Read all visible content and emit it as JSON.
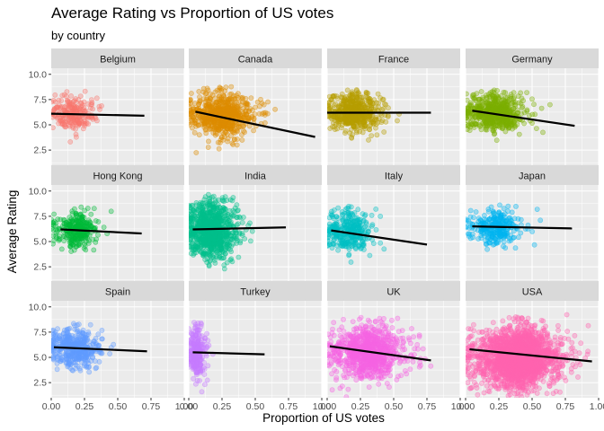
{
  "chart_data": {
    "type": "scatter",
    "title": "Average Rating vs Proportion of US votes",
    "subtitle": "by country",
    "xlabel": "Proportion of US votes",
    "ylabel": "Average Rating",
    "xlim": [
      0,
      1
    ],
    "ylim": [
      1,
      10.6
    ],
    "x_ticks": [
      0,
      0.25,
      0.5,
      0.75,
      1
    ],
    "x_tick_labels": [
      "0.00",
      "0.25",
      "0.50",
      "0.75",
      "1.00"
    ],
    "y_ticks": [
      2.5,
      5,
      7.5,
      10
    ],
    "y_tick_labels": [
      "2.5",
      "5.0",
      "7.5",
      "10.0"
    ],
    "grid": true,
    "legend": "none",
    "facet_ncol": 4,
    "panel_background": "#EBEBEB",
    "strip_background": "#D9D9D9",
    "trend_line_color": "#000000",
    "facets": [
      {
        "name": "Belgium",
        "color": "#F8766D",
        "n_points": 220,
        "x_center": 0.15,
        "x_spread": 0.09,
        "x_max": 0.68,
        "y_center": 6.1,
        "y_spread": 0.8,
        "y_min": 2.5,
        "y_max": 8.5,
        "trend": [
          [
            0.0,
            6.1
          ],
          [
            0.7,
            5.9
          ]
        ]
      },
      {
        "name": "Canada",
        "color": "#DE8C00",
        "n_points": 700,
        "x_center": 0.22,
        "x_spread": 0.13,
        "x_max": 0.98,
        "y_center": 6.0,
        "y_spread": 1.0,
        "y_min": 2.0,
        "y_max": 9.0,
        "trend": [
          [
            0.05,
            6.3
          ],
          [
            0.95,
            3.8
          ]
        ]
      },
      {
        "name": "France",
        "color": "#B79F00",
        "n_points": 550,
        "x_center": 0.18,
        "x_spread": 0.11,
        "x_max": 0.75,
        "y_center": 6.2,
        "y_spread": 0.9,
        "y_min": 2.0,
        "y_max": 8.5,
        "trend": [
          [
            0.0,
            6.2
          ],
          [
            0.78,
            6.2
          ]
        ]
      },
      {
        "name": "Germany",
        "color": "#7CAE00",
        "n_points": 600,
        "x_center": 0.2,
        "x_spread": 0.12,
        "x_max": 0.85,
        "y_center": 6.2,
        "y_spread": 0.9,
        "y_min": 1.8,
        "y_max": 8.5,
        "trend": [
          [
            0.05,
            6.4
          ],
          [
            0.82,
            4.9
          ]
        ]
      },
      {
        "name": "Hong Kong",
        "color": "#00BA38",
        "n_points": 320,
        "x_center": 0.18,
        "x_spread": 0.08,
        "x_max": 0.65,
        "y_center": 6.2,
        "y_spread": 0.8,
        "y_min": 3.5,
        "y_max": 8.5,
        "trend": [
          [
            0.07,
            6.2
          ],
          [
            0.68,
            5.8
          ]
        ]
      },
      {
        "name": "India",
        "color": "#00C08B",
        "n_points": 1000,
        "x_center": 0.15,
        "x_spread": 0.1,
        "x_max": 0.75,
        "y_center": 6.2,
        "y_spread": 1.3,
        "y_min": 1.5,
        "y_max": 9.8,
        "trend": [
          [
            0.03,
            6.2
          ],
          [
            0.73,
            6.4
          ]
        ]
      },
      {
        "name": "Italy",
        "color": "#00BFC4",
        "n_points": 350,
        "x_center": 0.15,
        "x_spread": 0.1,
        "x_max": 0.75,
        "y_center": 6.0,
        "y_spread": 1.0,
        "y_min": 1.5,
        "y_max": 8.5,
        "trend": [
          [
            0.03,
            6.1
          ],
          [
            0.75,
            4.7
          ]
        ]
      },
      {
        "name": "Japan",
        "color": "#00B4F0",
        "n_points": 300,
        "x_center": 0.2,
        "x_spread": 0.1,
        "x_max": 0.8,
        "y_center": 6.4,
        "y_spread": 0.8,
        "y_min": 1.0,
        "y_max": 9.0,
        "trend": [
          [
            0.05,
            6.5
          ],
          [
            0.8,
            6.3
          ]
        ]
      },
      {
        "name": "Spain",
        "color": "#619CFF",
        "n_points": 450,
        "x_center": 0.17,
        "x_spread": 0.1,
        "x_max": 0.7,
        "y_center": 6.0,
        "y_spread": 0.9,
        "y_min": 1.5,
        "y_max": 8.5,
        "trend": [
          [
            0.02,
            6.0
          ],
          [
            0.72,
            5.6
          ]
        ]
      },
      {
        "name": "Turkey",
        "color": "#C77CFF",
        "n_points": 250,
        "x_center": 0.05,
        "x_spread": 0.04,
        "x_max": 0.57,
        "y_center": 5.5,
        "y_spread": 1.3,
        "y_min": 1.5,
        "y_max": 8.5,
        "trend": [
          [
            0.03,
            5.5
          ],
          [
            0.57,
            5.3
          ]
        ]
      },
      {
        "name": "UK",
        "color": "#F564E3",
        "n_points": 900,
        "x_center": 0.28,
        "x_spread": 0.14,
        "x_max": 0.9,
        "y_center": 5.5,
        "y_spread": 1.3,
        "y_min": 1.0,
        "y_max": 9.0,
        "trend": [
          [
            0.02,
            6.1
          ],
          [
            0.78,
            4.7
          ]
        ]
      },
      {
        "name": "USA",
        "color": "#FF64B0",
        "n_points": 2000,
        "x_center": 0.38,
        "x_spread": 0.16,
        "x_max": 0.96,
        "y_center": 5.0,
        "y_spread": 1.4,
        "y_min": 1.0,
        "y_max": 9.5,
        "trend": [
          [
            0.03,
            5.8
          ],
          [
            0.95,
            4.6
          ]
        ]
      }
    ]
  }
}
